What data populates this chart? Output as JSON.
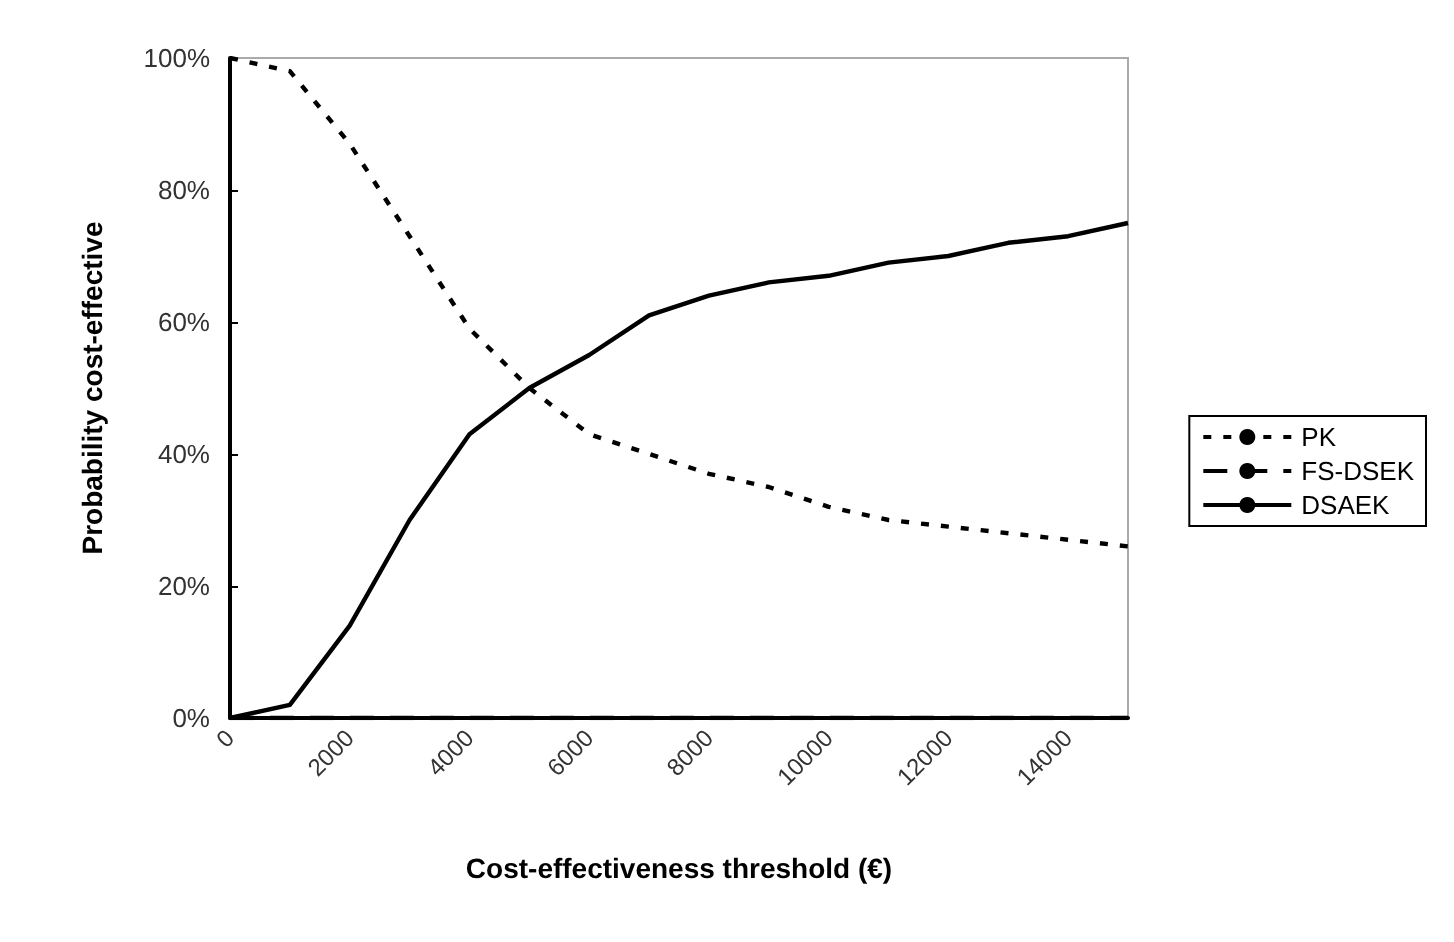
{
  "chart_data": {
    "type": "line",
    "xlabel": "Cost-effectiveness threshold (€)",
    "ylabel": "Probability cost-effective",
    "x": [
      0,
      1000,
      2000,
      3000,
      4000,
      5000,
      6000,
      7000,
      8000,
      9000,
      10000,
      11000,
      12000,
      13000,
      14000,
      15000
    ],
    "series": [
      {
        "name": "PK",
        "color": "#000000",
        "line_style": "dotted",
        "values": [
          100,
          98,
          87,
          73,
          59,
          50,
          43,
          40,
          37,
          35,
          32,
          30,
          29,
          28,
          27,
          26
        ]
      },
      {
        "name": "FS-DSEK",
        "color": "#000000",
        "line_style": "dashed",
        "values": [
          0,
          0,
          0,
          0,
          0,
          0,
          0,
          0,
          0,
          0,
          0,
          0,
          0,
          0,
          0,
          0
        ]
      },
      {
        "name": "DSAEK",
        "color": "#000000",
        "line_style": "solid",
        "values": [
          0,
          2,
          14,
          30,
          43,
          50,
          55,
          61,
          64,
          66,
          67,
          69,
          70,
          72,
          73,
          75
        ]
      }
    ],
    "xlim": [
      0,
      15000
    ],
    "xticks": [
      0,
      2000,
      4000,
      6000,
      8000,
      10000,
      12000,
      14000
    ],
    "ylim": [
      0,
      100
    ],
    "yticks": [
      {
        "value": 0,
        "label": "0%"
      },
      {
        "value": 20,
        "label": "20%"
      },
      {
        "value": 40,
        "label": "40%"
      },
      {
        "value": 60,
        "label": "60%"
      },
      {
        "value": 80,
        "label": "80%"
      },
      {
        "value": 100,
        "label": "100%"
      }
    ],
    "grid": false,
    "legend": "right",
    "marker": "none"
  }
}
